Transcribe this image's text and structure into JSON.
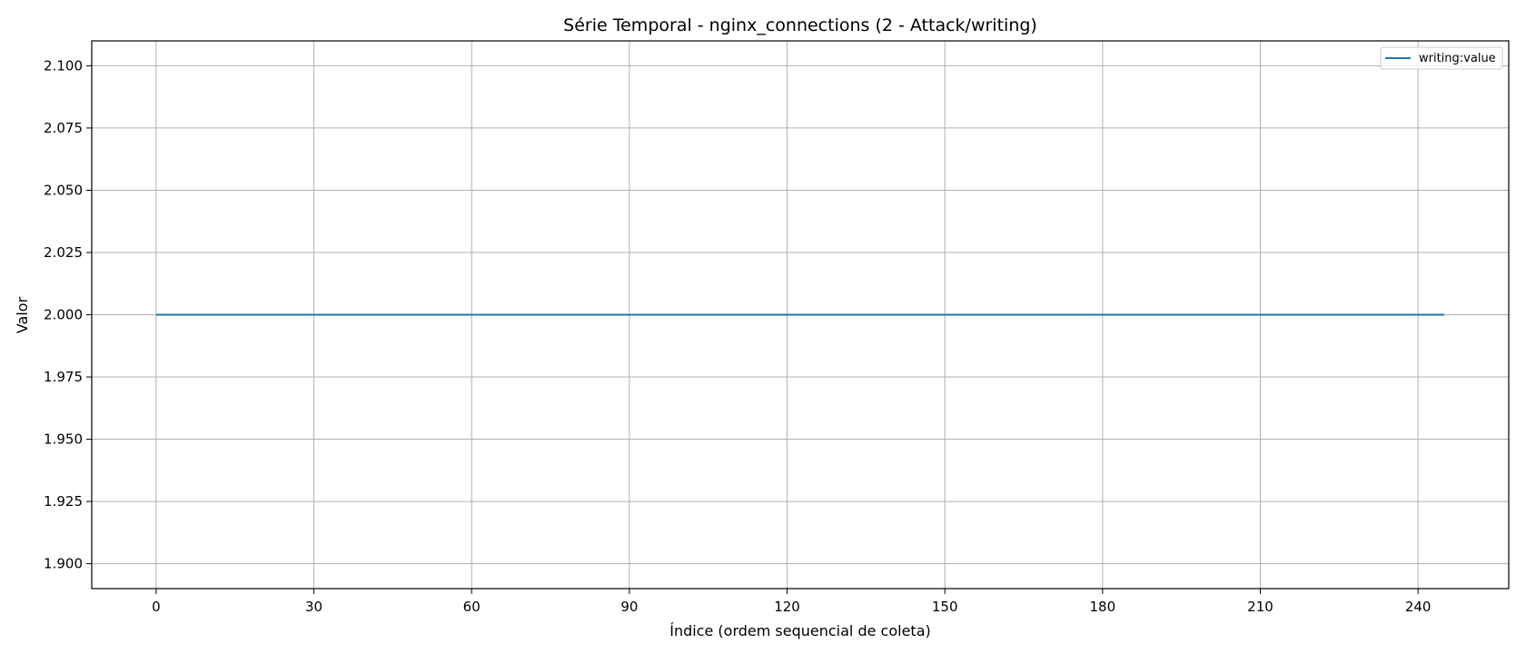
{
  "chart_data": {
    "type": "line",
    "title": "Série Temporal - nginx_connections (2 - Attack/writing)",
    "xlabel": "Índice (ordem sequencial de coleta)",
    "ylabel": "Valor",
    "xlim": [
      -12.25,
      257.25
    ],
    "ylim": [
      1.89,
      2.11
    ],
    "xticks": [
      0,
      30,
      60,
      90,
      120,
      150,
      180,
      210,
      240
    ],
    "xtick_labels": [
      "0",
      "30",
      "60",
      "90",
      "120",
      "150",
      "180",
      "210",
      "240"
    ],
    "yticks": [
      1.9,
      1.925,
      1.95,
      1.975,
      2.0,
      2.025,
      2.05,
      2.075,
      2.1
    ],
    "ytick_labels": [
      "1.900",
      "1.925",
      "1.950",
      "1.975",
      "2.000",
      "2.025",
      "2.050",
      "2.075",
      "2.100"
    ],
    "grid": true,
    "legend_position": "top-right",
    "series": [
      {
        "name": "writing:value",
        "color": "#1f77b4",
        "x": [
          0,
          245
        ],
        "y": [
          2.0,
          2.0
        ]
      }
    ]
  }
}
